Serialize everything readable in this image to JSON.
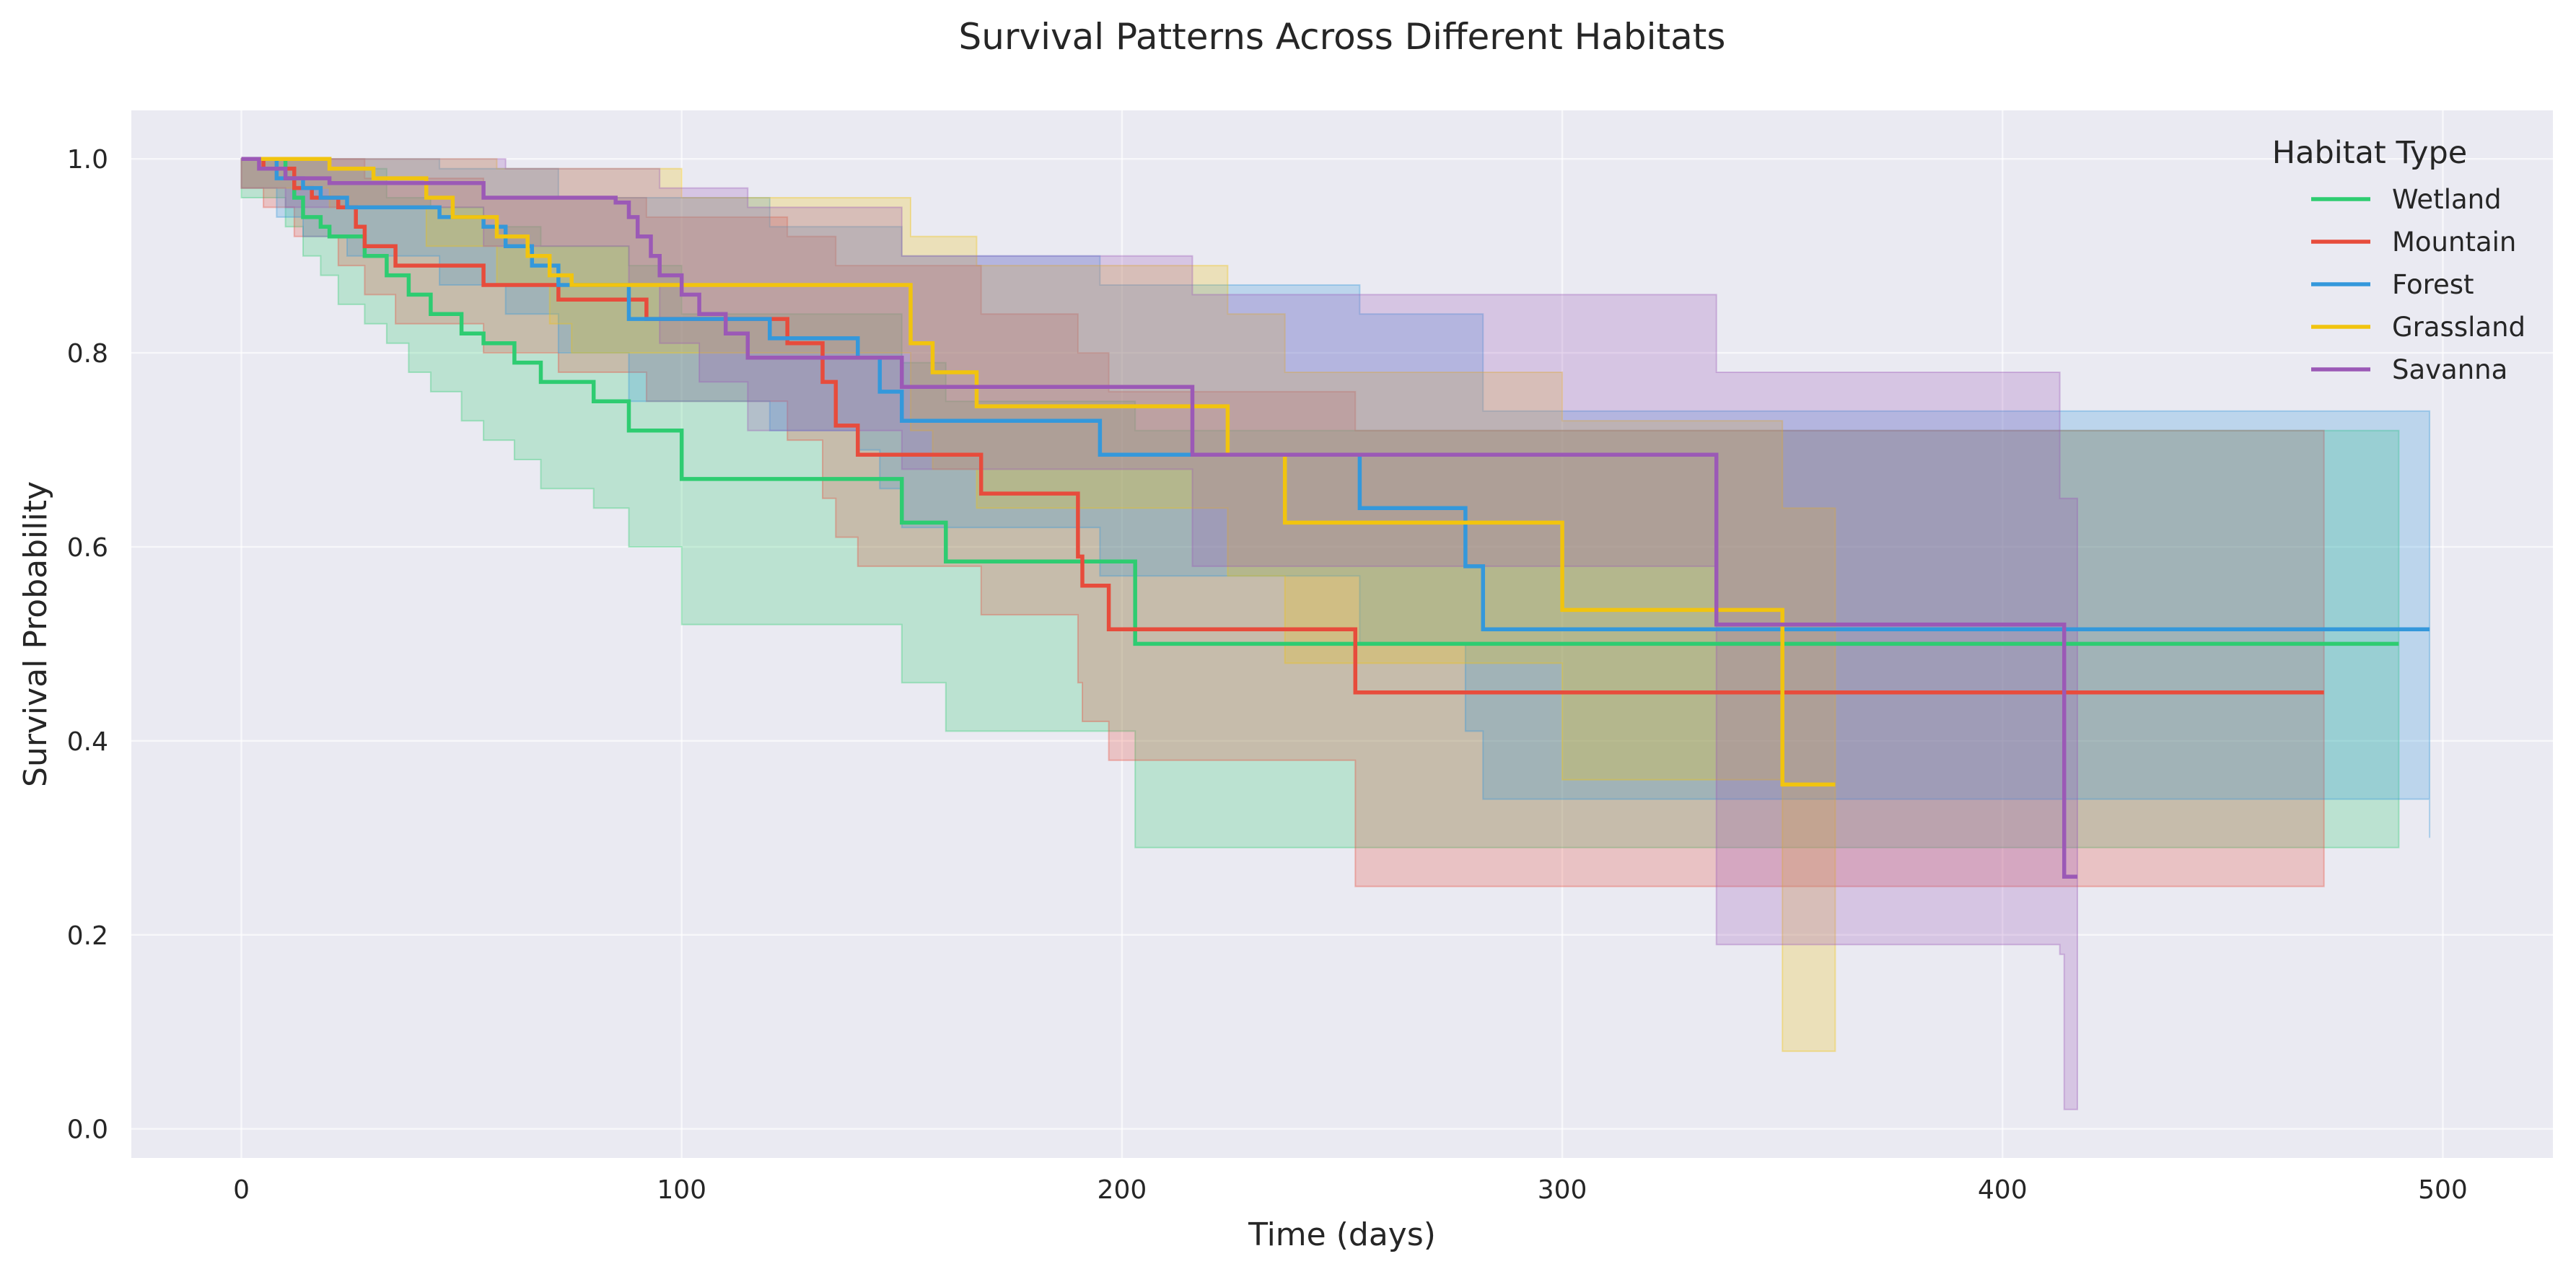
{
  "chart_data": {
    "type": "line",
    "title": "Survival Patterns Across Different Habitats",
    "xlabel": "Time (days)",
    "ylabel": "Survival Probability",
    "xlim": [
      -25,
      525
    ],
    "ylim": [
      -0.03,
      1.05
    ],
    "xticks": [
      0,
      100,
      200,
      300,
      400,
      500
    ],
    "yticks": [
      0.0,
      0.2,
      0.4,
      0.6,
      0.8,
      1.0
    ],
    "xtick_labels": [
      "0",
      "100",
      "200",
      "300",
      "400",
      "500"
    ],
    "ytick_labels": [
      "0.0",
      "0.2",
      "0.4",
      "0.6",
      "0.8",
      "1.0"
    ],
    "grid": true,
    "legend": {
      "title": "Habitat Type",
      "placement": "top-right"
    },
    "series": [
      {
        "name": "Wetland",
        "color": "#2ecc71",
        "steps": [
          [
            0,
            1.0
          ],
          [
            10,
            0.98
          ],
          [
            12,
            0.96
          ],
          [
            14,
            0.94
          ],
          [
            18,
            0.93
          ],
          [
            20,
            0.92
          ],
          [
            28,
            0.9
          ],
          [
            33,
            0.88
          ],
          [
            38,
            0.86
          ],
          [
            43,
            0.84
          ],
          [
            50,
            0.82
          ],
          [
            55,
            0.81
          ],
          [
            62,
            0.79
          ],
          [
            68,
            0.77
          ],
          [
            80,
            0.75
          ],
          [
            88,
            0.72
          ],
          [
            100,
            0.67
          ],
          [
            150,
            0.625
          ],
          [
            160,
            0.585
          ],
          [
            203,
            0.5
          ],
          [
            490,
            0.5
          ]
        ],
        "lower": [
          [
            0,
            0.96
          ],
          [
            10,
            0.93
          ],
          [
            14,
            0.9
          ],
          [
            18,
            0.88
          ],
          [
            22,
            0.85
          ],
          [
            28,
            0.83
          ],
          [
            33,
            0.81
          ],
          [
            38,
            0.78
          ],
          [
            43,
            0.76
          ],
          [
            50,
            0.73
          ],
          [
            55,
            0.71
          ],
          [
            62,
            0.69
          ],
          [
            68,
            0.66
          ],
          [
            80,
            0.64
          ],
          [
            88,
            0.6
          ],
          [
            100,
            0.52
          ],
          [
            150,
            0.46
          ],
          [
            160,
            0.41
          ],
          [
            203,
            0.29
          ],
          [
            490,
            0.29
          ]
        ],
        "upper": [
          [
            0,
            1.0
          ],
          [
            20,
            0.99
          ],
          [
            33,
            0.96
          ],
          [
            43,
            0.95
          ],
          [
            55,
            0.93
          ],
          [
            68,
            0.91
          ],
          [
            88,
            0.89
          ],
          [
            100,
            0.84
          ],
          [
            150,
            0.79
          ],
          [
            160,
            0.75
          ],
          [
            203,
            0.72
          ],
          [
            490,
            0.68
          ]
        ]
      },
      {
        "name": "Mountain",
        "color": "#e74c3c",
        "steps": [
          [
            0,
            1.0
          ],
          [
            5,
            0.99
          ],
          [
            12,
            0.97
          ],
          [
            16,
            0.96
          ],
          [
            22,
            0.95
          ],
          [
            26,
            0.93
          ],
          [
            28,
            0.91
          ],
          [
            35,
            0.89
          ],
          [
            55,
            0.87
          ],
          [
            72,
            0.855
          ],
          [
            92,
            0.835
          ],
          [
            124,
            0.81
          ],
          [
            132,
            0.77
          ],
          [
            135,
            0.725
          ],
          [
            140,
            0.695
          ],
          [
            168,
            0.655
          ],
          [
            190,
            0.59
          ],
          [
            191,
            0.56
          ],
          [
            197,
            0.515
          ],
          [
            253,
            0.45
          ],
          [
            473,
            0.45
          ]
        ],
        "lower": [
          [
            0,
            0.97
          ],
          [
            5,
            0.95
          ],
          [
            12,
            0.92
          ],
          [
            22,
            0.89
          ],
          [
            28,
            0.86
          ],
          [
            35,
            0.83
          ],
          [
            55,
            0.8
          ],
          [
            72,
            0.78
          ],
          [
            92,
            0.75
          ],
          [
            124,
            0.71
          ],
          [
            132,
            0.65
          ],
          [
            135,
            0.61
          ],
          [
            140,
            0.58
          ],
          [
            168,
            0.53
          ],
          [
            190,
            0.46
          ],
          [
            191,
            0.42
          ],
          [
            197,
            0.38
          ],
          [
            253,
            0.25
          ],
          [
            473,
            0.25
          ]
        ],
        "upper": [
          [
            0,
            1.0
          ],
          [
            28,
            0.98
          ],
          [
            55,
            0.96
          ],
          [
            92,
            0.94
          ],
          [
            124,
            0.92
          ],
          [
            135,
            0.89
          ],
          [
            168,
            0.84
          ],
          [
            190,
            0.8
          ],
          [
            197,
            0.76
          ],
          [
            253,
            0.72
          ],
          [
            473,
            0.63
          ]
        ]
      },
      {
        "name": "Forest",
        "color": "#3498db",
        "steps": [
          [
            0,
            1.0
          ],
          [
            8,
            0.98
          ],
          [
            14,
            0.97
          ],
          [
            18,
            0.96
          ],
          [
            24,
            0.95
          ],
          [
            45,
            0.94
          ],
          [
            55,
            0.93
          ],
          [
            60,
            0.91
          ],
          [
            66,
            0.89
          ],
          [
            72,
            0.87
          ],
          [
            88,
            0.835
          ],
          [
            120,
            0.815
          ],
          [
            140,
            0.795
          ],
          [
            145,
            0.76
          ],
          [
            150,
            0.73
          ],
          [
            195,
            0.695
          ],
          [
            254,
            0.64
          ],
          [
            278,
            0.58
          ],
          [
            282,
            0.515
          ],
          [
            497,
            0.515
          ]
        ],
        "lower": [
          [
            0,
            0.97
          ],
          [
            8,
            0.94
          ],
          [
            14,
            0.92
          ],
          [
            24,
            0.9
          ],
          [
            45,
            0.87
          ],
          [
            60,
            0.84
          ],
          [
            72,
            0.8
          ],
          [
            88,
            0.75
          ],
          [
            120,
            0.72
          ],
          [
            140,
            0.7
          ],
          [
            145,
            0.66
          ],
          [
            150,
            0.62
          ],
          [
            195,
            0.57
          ],
          [
            254,
            0.5
          ],
          [
            278,
            0.41
          ],
          [
            282,
            0.34
          ],
          [
            497,
            0.3
          ]
        ],
        "upper": [
          [
            0,
            1.0
          ],
          [
            45,
            0.99
          ],
          [
            72,
            0.96
          ],
          [
            120,
            0.93
          ],
          [
            150,
            0.9
          ],
          [
            195,
            0.87
          ],
          [
            254,
            0.84
          ],
          [
            282,
            0.74
          ],
          [
            497,
            0.69
          ]
        ]
      },
      {
        "name": "Grassland",
        "color": "#f1c40f",
        "steps": [
          [
            0,
            1.0
          ],
          [
            20,
            0.99
          ],
          [
            30,
            0.98
          ],
          [
            42,
            0.96
          ],
          [
            48,
            0.94
          ],
          [
            58,
            0.92
          ],
          [
            65,
            0.9
          ],
          [
            70,
            0.88
          ],
          [
            75,
            0.87
          ],
          [
            152,
            0.81
          ],
          [
            157,
            0.78
          ],
          [
            167,
            0.745
          ],
          [
            224,
            0.695
          ],
          [
            237,
            0.625
          ],
          [
            300,
            0.535
          ],
          [
            350,
            0.355
          ],
          [
            362,
            0.355
          ]
        ],
        "lower": [
          [
            0,
            0.97
          ],
          [
            20,
            0.95
          ],
          [
            42,
            0.91
          ],
          [
            58,
            0.87
          ],
          [
            70,
            0.83
          ],
          [
            75,
            0.8
          ],
          [
            152,
            0.72
          ],
          [
            157,
            0.68
          ],
          [
            167,
            0.64
          ],
          [
            224,
            0.57
          ],
          [
            237,
            0.48
          ],
          [
            300,
            0.36
          ],
          [
            350,
            0.08
          ],
          [
            362,
            0.08
          ]
        ],
        "upper": [
          [
            0,
            1.0
          ],
          [
            58,
            0.99
          ],
          [
            100,
            0.96
          ],
          [
            152,
            0.92
          ],
          [
            167,
            0.89
          ],
          [
            224,
            0.84
          ],
          [
            237,
            0.78
          ],
          [
            300,
            0.73
          ],
          [
            350,
            0.64
          ],
          [
            362,
            0.64
          ]
        ]
      },
      {
        "name": "Savanna",
        "color": "#9b59b6",
        "steps": [
          [
            0,
            1.0
          ],
          [
            4,
            0.99
          ],
          [
            10,
            0.98
          ],
          [
            20,
            0.975
          ],
          [
            55,
            0.96
          ],
          [
            85,
            0.955
          ],
          [
            88,
            0.94
          ],
          [
            90,
            0.92
          ],
          [
            93,
            0.9
          ],
          [
            95,
            0.88
          ],
          [
            100,
            0.86
          ],
          [
            104,
            0.84
          ],
          [
            110,
            0.82
          ],
          [
            115,
            0.795
          ],
          [
            140,
            0.795
          ],
          [
            150,
            0.765
          ],
          [
            216,
            0.695
          ],
          [
            335,
            0.52
          ],
          [
            413,
            0.52
          ],
          [
            414,
            0.26
          ],
          [
            417,
            0.26
          ]
        ],
        "lower": [
          [
            0,
            0.97
          ],
          [
            10,
            0.95
          ],
          [
            55,
            0.91
          ],
          [
            88,
            0.87
          ],
          [
            95,
            0.81
          ],
          [
            104,
            0.77
          ],
          [
            115,
            0.72
          ],
          [
            150,
            0.68
          ],
          [
            216,
            0.58
          ],
          [
            335,
            0.19
          ],
          [
            413,
            0.18
          ],
          [
            414,
            0.02
          ],
          [
            417,
            0.02
          ]
        ],
        "upper": [
          [
            0,
            1.0
          ],
          [
            60,
            0.99
          ],
          [
            95,
            0.97
          ],
          [
            115,
            0.95
          ],
          [
            150,
            0.9
          ],
          [
            216,
            0.86
          ],
          [
            335,
            0.78
          ],
          [
            413,
            0.65
          ],
          [
            417,
            0.65
          ]
        ]
      }
    ]
  }
}
